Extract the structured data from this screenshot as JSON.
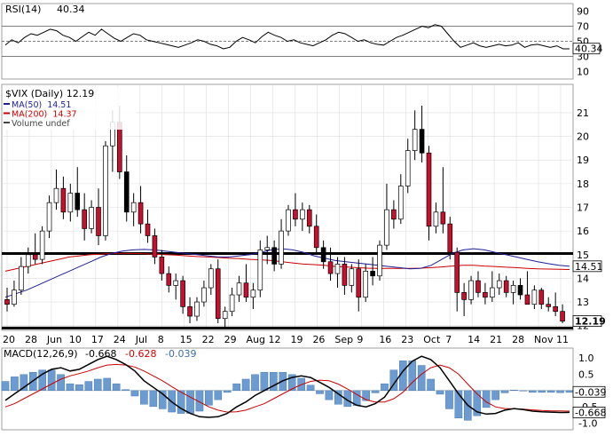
{
  "chart_data": [
    {
      "type": "line",
      "panel": "rsi",
      "legend": {
        "name": "RSI(14)",
        "value": "40.34"
      },
      "y_ticks": [
        "90",
        "70",
        "50",
        "30",
        "10"
      ],
      "ylim": [
        0,
        100
      ],
      "ref_lines": [
        70,
        50,
        30
      ],
      "last_value": "40.34",
      "series": [
        {
          "values": [
            45,
            52,
            48,
            55,
            60,
            58,
            62,
            66,
            64,
            58,
            55,
            50,
            56,
            62,
            58,
            66,
            60,
            54,
            50,
            55,
            60,
            58,
            52,
            50,
            48,
            46,
            44,
            42,
            45,
            48,
            52,
            50,
            46,
            44,
            40,
            42,
            50,
            55,
            52,
            48,
            56,
            62,
            58,
            55,
            50,
            52,
            48,
            46,
            44,
            48,
            52,
            58,
            62,
            60,
            55,
            50,
            52,
            48,
            46,
            45,
            50,
            55,
            58,
            62,
            66,
            70,
            68,
            72,
            70,
            60,
            50,
            42,
            45,
            48,
            44,
            42,
            44,
            46,
            44,
            45,
            48,
            42,
            45,
            46,
            44,
            42,
            44,
            40,
            40
          ]
        }
      ]
    },
    {
      "type": "candlestick",
      "panel": "price",
      "title": "$VIX (Daily) 12.19",
      "legend": [
        {
          "name": "MA(50)",
          "value": "14.51",
          "color": "#1f1f9a"
        },
        {
          "name": "MA(200)",
          "value": "14.37",
          "color": "#cc0000"
        },
        {
          "name": "Volume undef",
          "color": "#444444"
        }
      ],
      "y_ticks": [
        "21",
        "20",
        "19",
        "18",
        "17",
        "16",
        "15",
        "14",
        "13",
        "12"
      ],
      "ylim": [
        11.8,
        22.2
      ],
      "last_labels": [
        "14.51",
        "12.19"
      ],
      "hlines": [
        15.05,
        11.9
      ],
      "x_ticks": [
        "20",
        "28",
        "Jun",
        "10",
        "17",
        "24",
        "Jul",
        "8",
        "15",
        "22",
        "29",
        "Aug",
        "12",
        "19",
        "26",
        "Sep",
        "9",
        "16",
        "23",
        "Oct",
        "7",
        "14",
        "21",
        "28",
        "Nov",
        "11"
      ],
      "ma50": [
        13.2,
        13.35,
        13.5,
        13.7,
        13.9,
        14.1,
        14.3,
        14.5,
        14.7,
        14.9,
        15.05,
        15.15,
        15.2,
        15.22,
        15.2,
        15.15,
        15.1,
        15.05,
        15.0,
        14.95,
        14.9,
        14.9,
        14.95,
        15.0,
        15.1,
        15.2,
        15.25,
        15.2,
        15.1,
        14.95,
        14.85,
        14.75,
        14.7,
        14.65,
        14.6,
        14.55,
        14.5,
        14.45,
        14.4,
        14.42,
        14.55,
        14.8,
        15.05,
        15.2,
        15.25,
        15.2,
        15.1,
        15.0,
        14.9,
        14.8,
        14.7,
        14.62,
        14.55,
        14.51
      ],
      "ma200": [
        14.3,
        14.4,
        14.5,
        14.6,
        14.7,
        14.8,
        14.9,
        14.95,
        15.0,
        15.02,
        15.05,
        15.05,
        15.05,
        15.04,
        15.02,
        15.0,
        14.98,
        14.95,
        14.92,
        14.9,
        14.88,
        14.85,
        14.83,
        14.8,
        14.78,
        14.75,
        14.7,
        14.65,
        14.6,
        14.58,
        14.55,
        14.5,
        14.48,
        14.45,
        14.43,
        14.42,
        14.42,
        14.42,
        14.42,
        14.43,
        14.45,
        14.48,
        14.52,
        14.55,
        14.55,
        14.52,
        14.5,
        14.47,
        14.45,
        14.42,
        14.4,
        14.39,
        14.38,
        14.37
      ],
      "candles": [
        {
          "o": 13.1,
          "h": 13.6,
          "l": 12.6,
          "c": 12.9
        },
        {
          "o": 12.9,
          "h": 13.9,
          "l": 12.8,
          "c": 13.5
        },
        {
          "o": 13.5,
          "h": 14.9,
          "l": 13.3,
          "c": 14.5
        },
        {
          "o": 14.5,
          "h": 15.3,
          "l": 14.2,
          "c": 15.0
        },
        {
          "o": 15.0,
          "h": 15.9,
          "l": 14.6,
          "c": 14.8
        },
        {
          "o": 14.8,
          "h": 16.2,
          "l": 14.6,
          "c": 16.0
        },
        {
          "o": 16.0,
          "h": 17.5,
          "l": 15.7,
          "c": 17.2
        },
        {
          "o": 17.2,
          "h": 18.6,
          "l": 16.9,
          "c": 17.8
        },
        {
          "o": 17.8,
          "h": 18.3,
          "l": 16.5,
          "c": 16.8
        },
        {
          "o": 16.8,
          "h": 18.0,
          "l": 16.4,
          "c": 17.6
        },
        {
          "o": 17.6,
          "h": 18.7,
          "l": 16.6,
          "c": 16.9
        },
        {
          "o": 16.9,
          "h": 17.6,
          "l": 15.6,
          "c": 16.1
        },
        {
          "o": 16.1,
          "h": 17.3,
          "l": 15.9,
          "c": 17.0
        },
        {
          "o": 17.0,
          "h": 17.8,
          "l": 15.4,
          "c": 15.8
        },
        {
          "o": 15.8,
          "h": 19.8,
          "l": 15.6,
          "c": 19.6
        },
        {
          "o": 19.6,
          "h": 21.1,
          "l": 18.5,
          "c": 20.6
        },
        {
          "o": 20.6,
          "h": 21.3,
          "l": 18.2,
          "c": 18.5
        },
        {
          "o": 18.5,
          "h": 19.2,
          "l": 16.4,
          "c": 16.8
        },
        {
          "o": 16.8,
          "h": 17.6,
          "l": 16.2,
          "c": 17.2
        },
        {
          "o": 17.2,
          "h": 17.9,
          "l": 15.9,
          "c": 16.3
        },
        {
          "o": 16.3,
          "h": 16.9,
          "l": 15.5,
          "c": 15.8
        },
        {
          "o": 15.8,
          "h": 16.1,
          "l": 14.6,
          "c": 14.9
        },
        {
          "o": 14.9,
          "h": 15.2,
          "l": 13.9,
          "c": 14.2
        },
        {
          "o": 14.2,
          "h": 14.5,
          "l": 13.4,
          "c": 13.7
        },
        {
          "o": 13.7,
          "h": 14.2,
          "l": 13.1,
          "c": 13.9
        },
        {
          "o": 13.9,
          "h": 14.1,
          "l": 12.5,
          "c": 12.8
        },
        {
          "o": 12.8,
          "h": 13.2,
          "l": 12.1,
          "c": 12.4
        },
        {
          "o": 12.4,
          "h": 13.2,
          "l": 12.2,
          "c": 13.0
        },
        {
          "o": 13.0,
          "h": 13.9,
          "l": 12.8,
          "c": 13.6
        },
        {
          "o": 13.6,
          "h": 14.6,
          "l": 13.3,
          "c": 14.4
        },
        {
          "o": 14.4,
          "h": 14.8,
          "l": 12.1,
          "c": 12.3
        },
        {
          "o": 12.3,
          "h": 12.8,
          "l": 11.9,
          "c": 12.6
        },
        {
          "o": 12.6,
          "h": 13.6,
          "l": 12.4,
          "c": 13.3
        },
        {
          "o": 13.3,
          "h": 14.1,
          "l": 13.0,
          "c": 13.8
        },
        {
          "o": 13.8,
          "h": 14.6,
          "l": 13.0,
          "c": 13.2
        },
        {
          "o": 13.2,
          "h": 13.8,
          "l": 12.7,
          "c": 13.5
        },
        {
          "o": 13.5,
          "h": 15.6,
          "l": 13.2,
          "c": 15.2
        },
        {
          "o": 15.2,
          "h": 15.8,
          "l": 14.6,
          "c": 15.3
        },
        {
          "o": 15.3,
          "h": 15.6,
          "l": 14.3,
          "c": 14.6
        },
        {
          "o": 14.6,
          "h": 16.5,
          "l": 14.4,
          "c": 16.0
        },
        {
          "o": 16.0,
          "h": 17.1,
          "l": 15.8,
          "c": 16.9
        },
        {
          "o": 16.9,
          "h": 17.6,
          "l": 16.2,
          "c": 16.5
        },
        {
          "o": 16.5,
          "h": 17.2,
          "l": 16.0,
          "c": 16.9
        },
        {
          "o": 16.9,
          "h": 17.1,
          "l": 15.9,
          "c": 16.2
        },
        {
          "o": 16.2,
          "h": 16.7,
          "l": 15.1,
          "c": 15.3
        },
        {
          "o": 15.3,
          "h": 15.6,
          "l": 14.4,
          "c": 14.7
        },
        {
          "o": 14.7,
          "h": 15.3,
          "l": 13.9,
          "c": 14.2
        },
        {
          "o": 14.2,
          "h": 14.9,
          "l": 13.6,
          "c": 14.6
        },
        {
          "o": 14.6,
          "h": 14.9,
          "l": 13.3,
          "c": 13.7
        },
        {
          "o": 13.7,
          "h": 14.6,
          "l": 13.4,
          "c": 14.4
        },
        {
          "o": 14.4,
          "h": 14.8,
          "l": 12.6,
          "c": 13.2
        },
        {
          "o": 13.2,
          "h": 14.6,
          "l": 13.0,
          "c": 14.3
        },
        {
          "o": 14.3,
          "h": 14.9,
          "l": 13.7,
          "c": 14.1
        },
        {
          "o": 14.1,
          "h": 15.6,
          "l": 13.9,
          "c": 15.4
        },
        {
          "o": 15.4,
          "h": 18.0,
          "l": 15.2,
          "c": 16.9
        },
        {
          "o": 16.9,
          "h": 17.3,
          "l": 16.1,
          "c": 16.5
        },
        {
          "o": 16.5,
          "h": 18.4,
          "l": 16.3,
          "c": 17.9
        },
        {
          "o": 17.9,
          "h": 19.9,
          "l": 17.6,
          "c": 19.4
        },
        {
          "o": 19.4,
          "h": 21.1,
          "l": 19.0,
          "c": 20.3
        },
        {
          "o": 20.3,
          "h": 21.3,
          "l": 18.9,
          "c": 19.3
        },
        {
          "o": 19.3,
          "h": 19.6,
          "l": 15.6,
          "c": 16.2
        },
        {
          "o": 16.2,
          "h": 17.2,
          "l": 15.9,
          "c": 16.8
        },
        {
          "o": 16.8,
          "h": 18.7,
          "l": 15.9,
          "c": 16.3
        },
        {
          "o": 16.3,
          "h": 16.6,
          "l": 14.8,
          "c": 15.1
        },
        {
          "o": 15.1,
          "h": 15.3,
          "l": 12.6,
          "c": 13.4
        },
        {
          "o": 13.4,
          "h": 13.8,
          "l": 12.4,
          "c": 13.1
        },
        {
          "o": 13.1,
          "h": 14.1,
          "l": 12.9,
          "c": 13.9
        },
        {
          "o": 13.9,
          "h": 14.3,
          "l": 13.2,
          "c": 13.4
        },
        {
          "o": 13.4,
          "h": 13.8,
          "l": 12.9,
          "c": 13.2
        },
        {
          "o": 13.2,
          "h": 14.3,
          "l": 13.0,
          "c": 13.6
        },
        {
          "o": 13.6,
          "h": 14.2,
          "l": 13.3,
          "c": 13.9
        },
        {
          "o": 13.9,
          "h": 14.1,
          "l": 13.2,
          "c": 13.4
        },
        {
          "o": 13.4,
          "h": 13.9,
          "l": 12.9,
          "c": 13.7
        },
        {
          "o": 13.7,
          "h": 14.0,
          "l": 13.1,
          "c": 13.3
        },
        {
          "o": 13.3,
          "h": 14.3,
          "l": 12.9,
          "c": 12.9
        },
        {
          "o": 12.9,
          "h": 13.7,
          "l": 12.7,
          "c": 13.5
        },
        {
          "o": 13.5,
          "h": 13.6,
          "l": 12.7,
          "c": 12.9
        },
        {
          "o": 12.9,
          "h": 13.2,
          "l": 12.6,
          "c": 12.8
        },
        {
          "o": 12.8,
          "h": 13.4,
          "l": 12.4,
          "c": 12.6
        },
        {
          "o": 12.6,
          "h": 12.9,
          "l": 12.1,
          "c": 12.19
        }
      ]
    },
    {
      "type": "macd",
      "panel": "macd",
      "legend": {
        "name": "MACD(12,26,9)",
        "macd": "-0.668",
        "signal": "-0.628",
        "hist": "-0.039"
      },
      "y_ticks": [
        "1.0",
        "0.5",
        "0.0",
        "-0.5",
        "-1.0"
      ],
      "ylim": [
        -1.2,
        1.3
      ],
      "last_labels": [
        "-0.039",
        "-0.668"
      ],
      "macd": [
        -0.3,
        -0.1,
        0.1,
        0.3,
        0.5,
        0.65,
        0.7,
        0.6,
        0.65,
        0.8,
        0.95,
        1.05,
        0.95,
        0.8,
        0.6,
        0.3,
        0.1,
        -0.1,
        -0.35,
        -0.55,
        -0.7,
        -0.8,
        -0.82,
        -0.8,
        -0.7,
        -0.5,
        -0.35,
        -0.15,
        0.0,
        0.15,
        0.3,
        0.4,
        0.45,
        0.4,
        0.25,
        0.1,
        -0.1,
        -0.3,
        -0.45,
        -0.5,
        -0.4,
        -0.2,
        0.2,
        0.6,
        0.9,
        1.05,
        0.95,
        0.7,
        0.3,
        -0.1,
        -0.45,
        -0.65,
        -0.72,
        -0.7,
        -0.6,
        -0.55,
        -0.58,
        -0.63,
        -0.65,
        -0.66,
        -0.67,
        -0.668
      ],
      "signal": [
        -0.5,
        -0.4,
        -0.25,
        -0.1,
        0.05,
        0.2,
        0.35,
        0.45,
        0.52,
        0.6,
        0.7,
        0.78,
        0.8,
        0.78,
        0.72,
        0.6,
        0.45,
        0.3,
        0.12,
        -0.05,
        -0.2,
        -0.35,
        -0.5,
        -0.6,
        -0.66,
        -0.65,
        -0.6,
        -0.5,
        -0.4,
        -0.25,
        -0.1,
        0.05,
        0.18,
        0.28,
        0.32,
        0.3,
        0.2,
        0.05,
        -0.12,
        -0.28,
        -0.35,
        -0.35,
        -0.25,
        -0.05,
        0.25,
        0.5,
        0.7,
        0.78,
        0.7,
        0.5,
        0.2,
        -0.1,
        -0.35,
        -0.5,
        -0.55,
        -0.56,
        -0.57,
        -0.59,
        -0.61,
        -0.62,
        -0.625,
        -0.628
      ]
    }
  ]
}
